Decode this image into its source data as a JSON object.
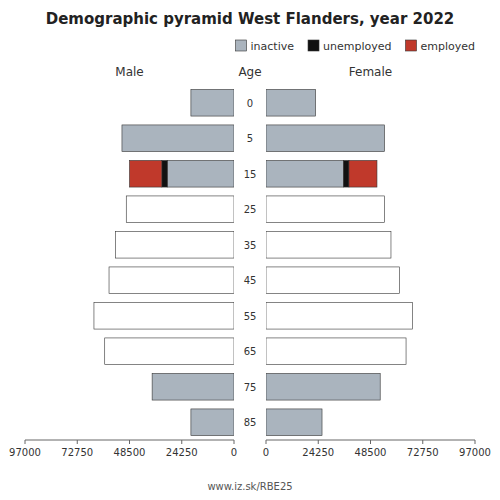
{
  "chart_data": [
    {
      "type": "bar",
      "orientation": "horizontal",
      "stacked": true,
      "title": "Demographic pyramid West Flanders, year 2022",
      "subtitle": "Male",
      "y_label": "Age",
      "annotations": [
        "www.iz.sk/RBE25"
      ],
      "categories": [
        "85",
        "75",
        "65",
        "55",
        "45",
        "35",
        "25",
        "15",
        "5",
        "0"
      ],
      "series": [
        {
          "color": "#aab4be",
          "colors": [
            "#aab4be",
            "#aab4be",
            "#ffffff",
            "#ffffff",
            "#ffffff",
            "#ffffff",
            "#ffffff",
            "#aab4be",
            "#aab4be",
            "#aab4be"
          ],
          "values": [
            20000,
            38000,
            60000,
            65000,
            58000,
            55000,
            50000,
            31000,
            52000,
            20000
          ]
        },
        {
          "color": "#111111",
          "values": [
            0,
            0,
            0,
            0,
            0,
            0,
            0,
            2500,
            0,
            0
          ]
        },
        {
          "color": "#c0392b",
          "values": [
            0,
            0,
            0,
            0,
            0,
            0,
            0,
            15000,
            0,
            0
          ]
        }
      ],
      "xlim": [
        97000,
        0
      ],
      "xticks": [
        97000,
        72750,
        48500,
        24250,
        0
      ]
    },
    {
      "type": "bar",
      "orientation": "horizontal",
      "stacked": true,
      "subtitle": "Female",
      "legend": "upper right",
      "series": [
        {
          "name": "inactive",
          "color": "#aab4be",
          "colors": [
            "#aab4be",
            "#aab4be",
            "#ffffff",
            "#ffffff",
            "#ffffff",
            "#ffffff",
            "#ffffff",
            "#aab4be",
            "#aab4be",
            "#aab4be"
          ],
          "values": [
            26000,
            53000,
            65000,
            68000,
            62000,
            58000,
            55000,
            36000,
            55000,
            23000
          ]
        },
        {
          "name": "unemployed",
          "color": "#111111",
          "values": [
            0,
            0,
            0,
            0,
            0,
            0,
            0,
            2500,
            0,
            0
          ]
        },
        {
          "name": "employed",
          "color": "#c0392b",
          "values": [
            0,
            0,
            0,
            0,
            0,
            0,
            0,
            13000,
            0,
            0
          ]
        }
      ],
      "xlim": [
        0,
        97000
      ],
      "xticks": [
        97000,
        72750,
        48500,
        24250,
        0
      ]
    }
  ]
}
